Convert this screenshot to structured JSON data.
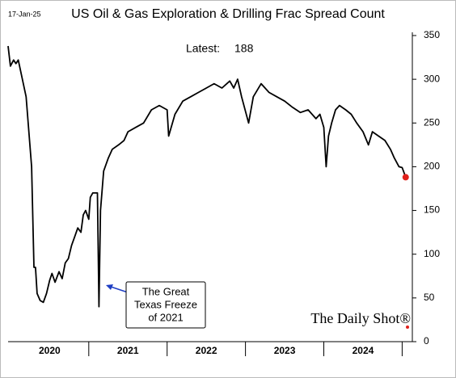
{
  "chart_data": {
    "type": "line",
    "title": "US Oil & Gas Exploration & Drilling Frac Spread Count",
    "date_stamp": "17-Jan-25",
    "latest_label": "Latest:",
    "latest_value": 188,
    "annotation": [
      "The Great",
      "Texas Freeze",
      "of 2021"
    ],
    "watermark": "The Daily Shot®",
    "color": "#000000",
    "last_point_color": "#e0201b",
    "x": [
      2019.97,
      2020.0,
      2020.04,
      2020.07,
      2020.1,
      2020.2,
      2020.27,
      2020.3,
      2020.32,
      2020.34,
      2020.38,
      2020.42,
      2020.46,
      2020.5,
      2020.53,
      2020.57,
      2020.62,
      2020.66,
      2020.7,
      2020.74,
      2020.78,
      2020.82,
      2020.86,
      2020.9,
      2020.93,
      2020.96,
      2021.0,
      2021.02,
      2021.05,
      2021.11,
      2021.13,
      2021.15,
      2021.19,
      2021.25,
      2021.3,
      2021.38,
      2021.45,
      2021.5,
      2021.6,
      2021.7,
      2021.8,
      2021.9,
      2022.0,
      2022.02,
      2022.1,
      2022.2,
      2022.3,
      2022.4,
      2022.5,
      2022.6,
      2022.7,
      2022.8,
      2022.85,
      2022.9,
      2022.95,
      2023.04,
      2023.1,
      2023.2,
      2023.3,
      2023.4,
      2023.5,
      2023.6,
      2023.7,
      2023.8,
      2023.9,
      2023.95,
      2024.0,
      2024.03,
      2024.06,
      2024.1,
      2024.15,
      2024.2,
      2024.28,
      2024.35,
      2024.42,
      2024.5,
      2024.57,
      2024.62,
      2024.7,
      2024.78,
      2024.85,
      2024.9,
      2024.96,
      2025.0,
      2025.045
    ],
    "values": [
      338,
      315,
      322,
      318,
      322,
      280,
      200,
      85,
      85,
      55,
      47,
      45,
      55,
      70,
      78,
      68,
      80,
      72,
      90,
      95,
      110,
      120,
      130,
      125,
      145,
      150,
      140,
      165,
      170,
      170,
      40,
      150,
      195,
      210,
      220,
      225,
      230,
      240,
      245,
      250,
      265,
      270,
      265,
      235,
      260,
      275,
      280,
      285,
      290,
      295,
      290,
      298,
      290,
      300,
      280,
      250,
      280,
      295,
      285,
      280,
      275,
      268,
      262,
      265,
      255,
      260,
      245,
      200,
      235,
      250,
      265,
      270,
      265,
      260,
      250,
      240,
      225,
      240,
      235,
      230,
      220,
      210,
      200,
      199,
      188
    ],
    "xlim": [
      2019.97,
      2025.13
    ],
    "xticks": [
      {
        "value": 2020.5,
        "label": "2020"
      },
      {
        "value": 2021.5,
        "label": "2021"
      },
      {
        "value": 2022.5,
        "label": "2022"
      },
      {
        "value": 2023.5,
        "label": "2023"
      },
      {
        "value": 2024.5,
        "label": "2024"
      }
    ],
    "x_separators": [
      2021,
      2022,
      2023,
      2024,
      2025
    ],
    "ylim": [
      0,
      350
    ],
    "yticks": [
      0,
      50,
      100,
      150,
      200,
      250,
      300,
      350
    ]
  }
}
